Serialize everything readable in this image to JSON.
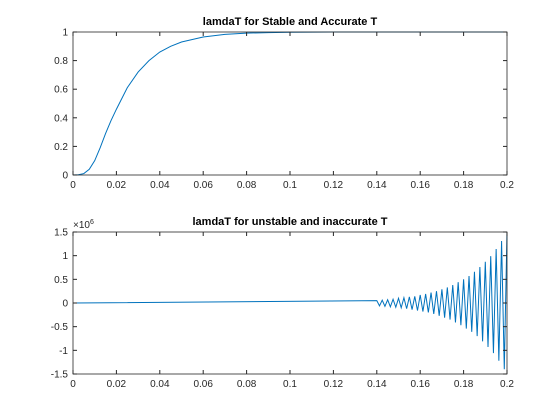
{
  "chart_data": [
    {
      "type": "line",
      "title": "lamdaT for Stable and Accurate T",
      "x": [
        0,
        0.0025,
        0.005,
        0.0075,
        0.01,
        0.0125,
        0.015,
        0.0175,
        0.02,
        0.025,
        0.03,
        0.035,
        0.04,
        0.045,
        0.05,
        0.06,
        0.07,
        0.08,
        0.09,
        0.1,
        0.12,
        0.14,
        0.16,
        0.18,
        0.2
      ],
      "series": [
        {
          "color": "#0072bd",
          "values": [
            0,
            0.002,
            0.01,
            0.04,
            0.1,
            0.19,
            0.29,
            0.38,
            0.46,
            0.61,
            0.72,
            0.8,
            0.86,
            0.9,
            0.93,
            0.965,
            0.983,
            0.992,
            0.996,
            0.998,
            1,
            1,
            1,
            1,
            1
          ]
        }
      ],
      "xlim": [
        0,
        0.2
      ],
      "xticks": [
        0,
        0.02,
        0.04,
        0.06,
        0.08,
        0.1,
        0.12,
        0.14,
        0.16,
        0.18,
        0.2
      ],
      "ylim": [
        0,
        1
      ],
      "yticks": [
        0,
        0.2,
        0.4,
        0.6,
        0.8,
        1
      ],
      "grid": false
    },
    {
      "type": "line",
      "title": "lamdaT for unstable and inaccurate T",
      "y_multiplier": {
        "base": "×10",
        "exponent": "6"
      },
      "x": [
        0,
        0.14,
        0.14125,
        0.1425,
        0.14375,
        0.145,
        0.14625,
        0.1475,
        0.14875,
        0.15,
        0.15125,
        0.1525,
        0.15375,
        0.155,
        0.15625,
        0.1575,
        0.15875,
        0.16,
        0.16125,
        0.1625,
        0.16375,
        0.165,
        0.16625,
        0.1675,
        0.16875,
        0.17,
        0.17125,
        0.1725,
        0.17375,
        0.175,
        0.17625,
        0.1775,
        0.17875,
        0.18,
        0.18125,
        0.1825,
        0.18375,
        0.185,
        0.18625,
        0.1875,
        0.18875,
        0.19,
        0.19125,
        0.1925,
        0.19375,
        0.195,
        0.19625,
        0.1975,
        0.19875,
        0.2
      ],
      "series": [
        {
          "color": "#0072bd",
          "values": [
            0,
            0.05,
            -0.06,
            0.06,
            -0.07,
            0.07,
            -0.08,
            0.08,
            -0.09,
            0.1,
            -0.1,
            0.11,
            -0.12,
            0.13,
            -0.14,
            0.14,
            -0.16,
            0.17,
            -0.18,
            0.19,
            -0.2,
            0.22,
            -0.23,
            0.25,
            -0.27,
            0.29,
            -0.31,
            0.33,
            -0.35,
            0.38,
            -0.41,
            0.44,
            -0.47,
            0.5,
            -0.54,
            0.57,
            -0.61,
            0.66,
            -0.7,
            0.76,
            -0.81,
            0.87,
            -0.93,
            0.99,
            -1.06,
            1.14,
            -1.22,
            1.31,
            -1.4,
            1.5
          ]
        }
      ],
      "xlim": [
        0,
        0.2
      ],
      "xticks": [
        0,
        0.02,
        0.04,
        0.06,
        0.08,
        0.1,
        0.12,
        0.14,
        0.16,
        0.18,
        0.2
      ],
      "ylim": [
        -1.5,
        1.5
      ],
      "yticks": [
        -1.5,
        -1,
        -0.5,
        0,
        0.5,
        1,
        1.5
      ],
      "grid": false
    }
  ]
}
